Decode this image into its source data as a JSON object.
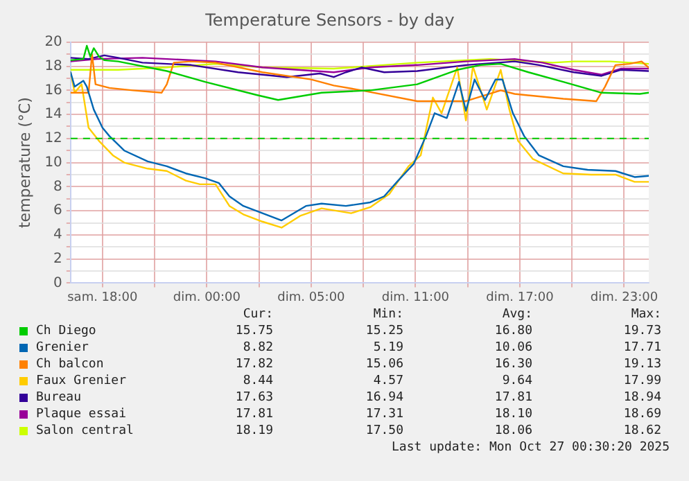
{
  "chart_data": {
    "type": "line",
    "title": "Temperature Sensors - by day",
    "ylabel": "temperature (°C)",
    "xlim": [
      "2025-10-25T14:10",
      "2025-10-26T23:25"
    ],
    "ylim": [
      0,
      20
    ],
    "xticks": [
      {
        "value": "2025-10-25T16:00",
        "label": "sam. 18:00"
      },
      {
        "value": "2025-10-25T19:00",
        "label": null
      },
      {
        "value": "2025-10-25T22:00",
        "label": "dim. 00:00"
      },
      {
        "value": "2025-10-26T01:00",
        "label": null
      },
      {
        "value": "2025-10-26T04:00",
        "label": "dim. 05:00"
      },
      {
        "value": "2025-10-26T07:00",
        "label": null
      },
      {
        "value": "2025-10-26T10:00",
        "label": "dim. 11:00"
      },
      {
        "value": "2025-10-26T13:00",
        "label": null
      },
      {
        "value": "2025-10-26T16:00",
        "label": "dim. 17:00"
      },
      {
        "value": "2025-10-26T19:00",
        "label": null
      },
      {
        "value": "2025-10-26T22:00",
        "label": "dim. 23:00"
      }
    ],
    "yticks": [
      0,
      {
        "value": 1,
        "label": null
      },
      2,
      {
        "value": 3,
        "label": null
      },
      4,
      {
        "value": 5,
        "label": null
      },
      6,
      {
        "value": 7,
        "label": null
      },
      8,
      {
        "value": 9,
        "label": null
      },
      10,
      {
        "value": 11,
        "label": null
      },
      12,
      {
        "value": 13,
        "label": null
      },
      14,
      {
        "value": 15,
        "label": null
      },
      16,
      {
        "value": 17,
        "label": null
      },
      18,
      {
        "value": 19,
        "label": null
      },
      20
    ],
    "grid": true,
    "legend": "bottom",
    "marker": "none",
    "line_style": "solid",
    "ref_lines": [
      {
        "axis": "y",
        "value": 12,
        "color": "#00cc00",
        "line_style": "dashed"
      }
    ],
    "series": [
      {
        "name": "Ch Diego",
        "color": "#00cc00",
        "x": [
          "2025-10-25T14:10",
          "2025-10-25T14:54",
          "2025-10-25T15:06",
          "2025-10-25T15:18",
          "2025-10-25T15:30",
          "2025-10-25T15:48",
          "2025-10-25T16:06",
          "2025-10-25T16:54",
          "2025-10-25T19:42",
          "2025-10-25T21:54",
          "2025-10-26T00:54",
          "2025-10-26T02:06",
          "2025-10-26T04:36",
          "2025-10-26T07:24",
          "2025-10-26T10:06",
          "2025-10-26T12:24",
          "2025-10-26T13:45",
          "2025-10-26T14:54",
          "2025-10-26T16:30",
          "2025-10-26T18:30",
          "2025-10-26T20:42",
          "2025-10-26T22:54",
          "2025-10-26T23:24"
        ],
        "values": [
          18.5,
          18.6,
          19.7,
          18.8,
          19.5,
          18.8,
          18.5,
          18.4,
          17.6,
          16.7,
          15.6,
          15.2,
          15.8,
          16.0,
          16.5,
          17.7,
          18.1,
          18.2,
          17.5,
          16.7,
          15.8,
          15.7,
          15.8
        ]
      },
      {
        "name": "Grenier",
        "color": "#0066b3",
        "x": [
          "2025-10-25T14:10",
          "2025-10-25T14:24",
          "2025-10-25T14:54",
          "2025-10-25T15:06",
          "2025-10-25T15:30",
          "2025-10-25T16:00",
          "2025-10-25T16:24",
          "2025-10-25T17:15",
          "2025-10-25T18:36",
          "2025-10-25T19:42",
          "2025-10-25T20:48",
          "2025-10-25T21:54",
          "2025-10-25T22:42",
          "2025-10-25T23:18",
          "2025-10-26T00:06",
          "2025-10-26T01:12",
          "2025-10-26T02:18",
          "2025-10-26T03:42",
          "2025-10-26T04:36",
          "2025-10-26T06:00",
          "2025-10-26T07:24",
          "2025-10-26T08:12",
          "2025-10-26T09:00",
          "2025-10-26T09:54",
          "2025-10-26T10:36",
          "2025-10-26T11:06",
          "2025-10-26T11:48",
          "2025-10-26T12:30",
          "2025-10-26T12:54",
          "2025-10-26T13:24",
          "2025-10-26T14:00",
          "2025-10-26T14:36",
          "2025-10-26T15:00",
          "2025-10-26T15:36",
          "2025-10-26T16:15",
          "2025-10-26T17:06",
          "2025-10-26T18:30",
          "2025-10-26T19:54",
          "2025-10-26T21:30",
          "2025-10-26T22:36",
          "2025-10-26T23:24"
        ],
        "values": [
          17.5,
          16.3,
          16.8,
          16.3,
          14.4,
          12.9,
          12.2,
          11.0,
          10.1,
          9.7,
          9.1,
          8.7,
          8.3,
          7.2,
          6.4,
          5.8,
          5.2,
          6.4,
          6.6,
          6.4,
          6.7,
          7.2,
          8.5,
          9.9,
          12.2,
          14.1,
          13.7,
          16.7,
          14.3,
          16.9,
          15.2,
          16.9,
          16.9,
          14.1,
          12.2,
          10.6,
          9.7,
          9.4,
          9.3,
          8.8,
          8.9
        ]
      },
      {
        "name": "Ch balcon",
        "color": "#ff8000",
        "x": [
          "2025-10-25T14:10",
          "2025-10-25T15:12",
          "2025-10-25T15:24",
          "2025-10-25T15:36",
          "2025-10-25T16:24",
          "2025-10-25T17:45",
          "2025-10-25T19:24",
          "2025-10-25T19:42",
          "2025-10-25T20:06",
          "2025-10-25T21:06",
          "2025-10-25T22:30",
          "2025-10-26T01:12",
          "2025-10-26T04:00",
          "2025-10-26T05:18",
          "2025-10-26T06:54",
          "2025-10-26T10:06",
          "2025-10-26T12:54",
          "2025-10-26T14:54",
          "2025-10-26T15:42",
          "2025-10-26T18:30",
          "2025-10-26T20:24",
          "2025-10-26T20:54",
          "2025-10-26T21:30",
          "2025-10-26T22:18",
          "2025-10-26T23:00",
          "2025-10-26T23:24"
        ],
        "values": [
          15.8,
          15.8,
          19.0,
          16.5,
          16.2,
          16.0,
          15.8,
          16.5,
          18.3,
          18.4,
          18.3,
          17.5,
          16.9,
          16.4,
          16.0,
          15.1,
          15.1,
          16.0,
          15.7,
          15.3,
          15.1,
          16.3,
          18.1,
          18.2,
          18.4,
          17.9
        ]
      },
      {
        "name": "Faux Grenier",
        "color": "#ffcc00",
        "x": [
          "2025-10-25T14:10",
          "2025-10-25T14:24",
          "2025-10-25T14:48",
          "2025-10-25T15:12",
          "2025-10-25T15:48",
          "2025-10-25T16:36",
          "2025-10-25T17:15",
          "2025-10-25T18:36",
          "2025-10-25T19:42",
          "2025-10-25T20:48",
          "2025-10-25T21:36",
          "2025-10-25T22:30",
          "2025-10-25T23:18",
          "2025-10-26T00:06",
          "2025-10-26T01:12",
          "2025-10-26T02:18",
          "2025-10-26T03:24",
          "2025-10-26T04:36",
          "2025-10-26T06:18",
          "2025-10-26T07:24",
          "2025-10-26T08:30",
          "2025-10-26T09:36",
          "2025-10-26T10:18",
          "2025-10-26T11:00",
          "2025-10-26T11:30",
          "2025-10-26T12:24",
          "2025-10-26T12:54",
          "2025-10-26T13:18",
          "2025-10-26T14:06",
          "2025-10-26T14:54",
          "2025-10-26T15:24",
          "2025-10-26T15:54",
          "2025-10-26T16:45",
          "2025-10-26T18:30",
          "2025-10-26T20:06",
          "2025-10-26T21:30",
          "2025-10-26T22:36",
          "2025-10-26T23:24"
        ],
        "values": [
          17.5,
          15.8,
          16.5,
          12.9,
          11.8,
          10.6,
          10.0,
          9.5,
          9.3,
          8.5,
          8.2,
          8.2,
          6.4,
          5.7,
          5.1,
          4.6,
          5.6,
          6.2,
          5.8,
          6.3,
          7.4,
          9.7,
          10.6,
          15.4,
          14.1,
          17.9,
          13.5,
          18.0,
          14.4,
          17.7,
          14.4,
          11.8,
          10.3,
          9.1,
          9.0,
          9.0,
          8.4,
          8.4
        ]
      },
      {
        "name": "Bureau",
        "color": "#330099",
        "x": [
          "2025-10-25T14:10",
          "2025-10-25T15:12",
          "2025-10-25T16:06",
          "2025-10-25T16:54",
          "2025-10-25T18:18",
          "2025-10-25T21:06",
          "2025-10-25T23:48",
          "2025-10-26T02:36",
          "2025-10-26T04:30",
          "2025-10-26T05:18",
          "2025-10-26T06:00",
          "2025-10-26T06:54",
          "2025-10-26T08:12",
          "2025-10-26T10:06",
          "2025-10-26T12:54",
          "2025-10-26T15:42",
          "2025-10-26T17:06",
          "2025-10-26T19:06",
          "2025-10-26T20:42",
          "2025-10-26T21:48",
          "2025-10-26T23:24"
        ],
        "values": [
          18.7,
          18.6,
          18.9,
          18.7,
          18.3,
          18.1,
          17.5,
          17.1,
          17.4,
          17.1,
          17.5,
          17.9,
          17.5,
          17.6,
          18.1,
          18.4,
          18.1,
          17.5,
          17.2,
          17.7,
          17.6
        ]
      },
      {
        "name": "Plaque essai",
        "color": "#990099",
        "x": [
          "2025-10-25T14:10",
          "2025-10-25T15:42",
          "2025-10-25T18:18",
          "2025-10-25T22:30",
          "2025-10-26T01:12",
          "2025-10-26T05:18",
          "2025-10-26T07:24",
          "2025-10-26T10:06",
          "2025-10-26T12:54",
          "2025-10-26T15:42",
          "2025-10-26T17:18",
          "2025-10-26T19:06",
          "2025-10-26T20:42",
          "2025-10-26T21:48",
          "2025-10-26T23:24"
        ],
        "values": [
          18.4,
          18.6,
          18.7,
          18.4,
          17.9,
          17.5,
          17.9,
          18.1,
          18.4,
          18.6,
          18.3,
          17.7,
          17.3,
          17.8,
          17.8
        ]
      },
      {
        "name": "Salon central",
        "color": "#ccff00",
        "x": [
          "2025-10-25T14:10",
          "2025-10-25T16:54",
          "2025-10-25T19:42",
          "2025-10-25T22:30",
          "2025-10-26T01:12",
          "2025-10-26T05:18",
          "2025-10-26T10:06",
          "2025-10-26T14:18",
          "2025-10-26T17:54",
          "2025-10-26T19:06",
          "2025-10-26T21:12",
          "2025-10-26T23:24"
        ],
        "values": [
          17.7,
          17.7,
          17.9,
          18.2,
          17.9,
          17.8,
          18.3,
          18.6,
          18.3,
          18.4,
          18.4,
          18.2
        ]
      }
    ],
    "annotations": [
      "Cur:",
      "Min:",
      "Avg:",
      "Max:",
      "15.75",
      "15.25",
      "16.80",
      "19.73",
      "8.82",
      "5.19",
      "10.06",
      "17.71",
      "17.82",
      "15.06",
      "16.30",
      "19.13",
      "8.44",
      "4.57",
      "9.64",
      "17.99",
      "17.63",
      "16.94",
      "17.81",
      "18.94",
      "17.81",
      "17.31",
      "18.10",
      "18.69",
      "18.19",
      "17.50",
      "18.06",
      "18.62",
      "Last update: Mon Oct 27 00:30:20 2025"
    ]
  }
}
